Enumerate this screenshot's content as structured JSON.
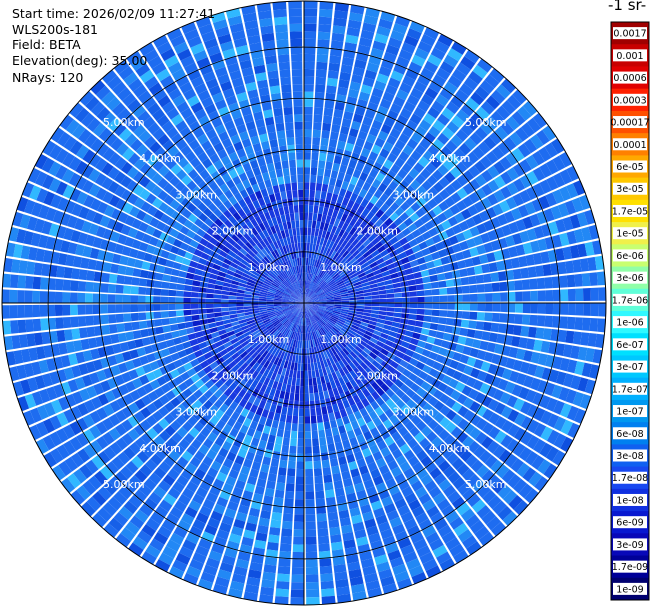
{
  "header": {
    "start_time": "Start time: 2026/02/09 11:27:41",
    "device": "WLS200s-181",
    "field": "Field: BETA",
    "elevation": "Elevation(deg): 35.00",
    "nrays": "NRays: 120"
  },
  "colorbar": {
    "title": "-1 sr-",
    "labels": [
      "0.0017",
      "0.001",
      "0.0006",
      "0.0003",
      "0.00017",
      "0.0001",
      "6e-05",
      "3e-05",
      "1.7e-05",
      "1e-05",
      "6e-06",
      "3e-06",
      "1.7e-06",
      "1e-06",
      "6e-07",
      "3e-07",
      "1.7e-07",
      "1e-07",
      "6e-08",
      "3e-08",
      "1.7e-08",
      "1e-08",
      "6e-09",
      "3e-09",
      "1.7e-09",
      "1e-09"
    ],
    "colors": [
      "#a00000",
      "#c80000",
      "#e00000",
      "#ff2000",
      "#ff5000",
      "#ff8000",
      "#ffa800",
      "#ffc800",
      "#ffe000",
      "#f0f04a",
      "#c8ff70",
      "#90ffa8",
      "#60ffd8",
      "#30f8ff",
      "#00e0ff",
      "#00c8ff",
      "#00b0ff",
      "#0098f0",
      "#0080f0",
      "#1060f0",
      "#1848f0",
      "#1030e0",
      "#0818d0",
      "#0808b8",
      "#000098",
      "#000070"
    ]
  },
  "chart_data": {
    "type": "heatmap",
    "title": "",
    "projection": "polar PPI",
    "field": "BETA",
    "elevation_deg": 35.0,
    "n_rays": 120,
    "range_rings_km": [
      1.0,
      2.0,
      3.0,
      4.0,
      5.0
    ],
    "ring_labels": [
      "1.00km",
      "2.00km",
      "3.00km",
      "4.00km",
      "5.00km"
    ],
    "max_range_km": 5.9,
    "dominant_value": "3e-08 to 1e-07",
    "near_field_value": "1e-08 to 3e-08",
    "grid": true
  }
}
